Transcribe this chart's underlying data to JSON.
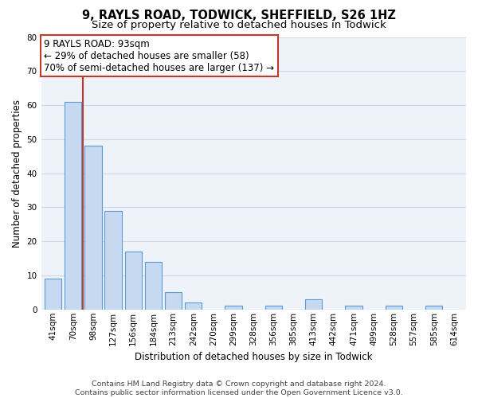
{
  "title": "9, RAYLS ROAD, TODWICK, SHEFFIELD, S26 1HZ",
  "subtitle": "Size of property relative to detached houses in Todwick",
  "xlabel": "Distribution of detached houses by size in Todwick",
  "ylabel": "Number of detached properties",
  "bar_labels": [
    "41sqm",
    "70sqm",
    "98sqm",
    "127sqm",
    "156sqm",
    "184sqm",
    "213sqm",
    "242sqm",
    "270sqm",
    "299sqm",
    "328sqm",
    "356sqm",
    "385sqm",
    "413sqm",
    "442sqm",
    "471sqm",
    "499sqm",
    "528sqm",
    "557sqm",
    "585sqm",
    "614sqm"
  ],
  "bar_values": [
    9,
    61,
    48,
    29,
    17,
    14,
    5,
    2,
    0,
    1,
    0,
    1,
    0,
    3,
    0,
    1,
    0,
    1,
    0,
    1,
    0
  ],
  "bar_color": "#c6d9f0",
  "bar_edge_color": "#5b9bd5",
  "highlight_line_index": 1,
  "highlight_line_color": "#c0392b",
  "annotation_line1": "9 RAYLS ROAD: 93sqm",
  "annotation_line2": "← 29% of detached houses are smaller (58)",
  "annotation_line3": "70% of semi-detached houses are larger (137) →",
  "annotation_box_edge": "#c0392b",
  "ylim": [
    0,
    80
  ],
  "yticks": [
    0,
    10,
    20,
    30,
    40,
    50,
    60,
    70,
    80
  ],
  "grid_color": "#d0d8e8",
  "background_color": "#eef2f9",
  "footer_text": "Contains HM Land Registry data © Crown copyright and database right 2024.\nContains public sector information licensed under the Open Government Licence v3.0.",
  "title_fontsize": 10.5,
  "subtitle_fontsize": 9.5,
  "xlabel_fontsize": 8.5,
  "ylabel_fontsize": 8.5,
  "tick_fontsize": 7.5,
  "annotation_fontsize": 8.5,
  "footer_fontsize": 6.8
}
